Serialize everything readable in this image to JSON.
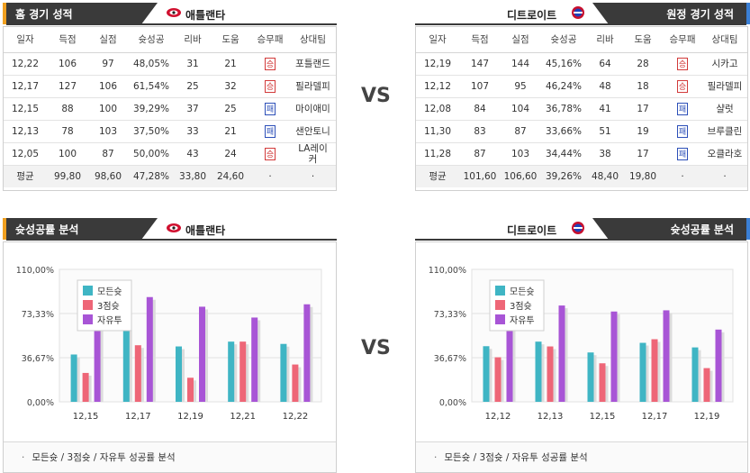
{
  "home_record": {
    "header_title": "홈 경기 성적",
    "team": "애틀랜타",
    "columns": [
      "일자",
      "득점",
      "실점",
      "슛성공",
      "리바",
      "도움",
      "승무패",
      "상대팀"
    ],
    "rows": [
      [
        "12,22",
        "106",
        "97",
        "48,05%",
        "31",
        "21",
        "승",
        "포틀랜드"
      ],
      [
        "12,17",
        "127",
        "106",
        "61,54%",
        "25",
        "32",
        "승",
        "필라델피"
      ],
      [
        "12,15",
        "88",
        "100",
        "39,29%",
        "37",
        "25",
        "패",
        "마이애미"
      ],
      [
        "12,13",
        "78",
        "103",
        "37,50%",
        "33",
        "21",
        "패",
        "샌안토니"
      ],
      [
        "12,05",
        "100",
        "87",
        "50,00%",
        "43",
        "24",
        "승",
        "LA레이커"
      ]
    ],
    "avg": [
      "평균",
      "99,80",
      "98,60",
      "47,28%",
      "33,80",
      "24,60",
      "·",
      "·"
    ]
  },
  "away_record": {
    "header_title": "원정 경기 성적",
    "team": "디트로이트",
    "columns": [
      "일자",
      "득점",
      "실점",
      "슛성공",
      "리바",
      "도움",
      "승무패",
      "상대팀"
    ],
    "rows": [
      [
        "12,19",
        "147",
        "144",
        "45,16%",
        "64",
        "28",
        "승",
        "시카고"
      ],
      [
        "12,12",
        "107",
        "95",
        "46,24%",
        "48",
        "18",
        "승",
        "필라델피"
      ],
      [
        "12,08",
        "84",
        "104",
        "36,78%",
        "41",
        "17",
        "패",
        "샬럿"
      ],
      [
        "11,30",
        "83",
        "87",
        "33,66%",
        "51",
        "19",
        "패",
        "브루클린"
      ],
      [
        "11,28",
        "87",
        "103",
        "34,44%",
        "38",
        "17",
        "패",
        "오클라호"
      ]
    ],
    "avg": [
      "평균",
      "101,60",
      "106,60",
      "39,26%",
      "48,40",
      "19,80",
      "·",
      "·"
    ]
  },
  "vs_label": "VS",
  "home_chart": {
    "header_title": "슛성공률 분석",
    "team": "애틀랜타",
    "footer": "모든슛 / 3점슛 / 자유투 성공률 분석"
  },
  "away_chart": {
    "header_title": "슛성공률 분석",
    "team": "디트로이트",
    "footer": "모든슛 / 3점슛 / 자유투 성공률 분석"
  },
  "colors": {
    "all_shots": "#3fb5c4",
    "three_pt": "#ee6677",
    "free_throw": "#a855d6",
    "home_accent": "#f0a020",
    "away_accent": "#3a7fd5"
  },
  "chart_data": [
    {
      "type": "bar",
      "categories": [
        "12,15",
        "12,17",
        "12,19",
        "12,21",
        "12,22"
      ],
      "series": [
        {
          "name": "모든슛",
          "values": [
            39.3,
            61.5,
            46.0,
            50.0,
            48.1
          ]
        },
        {
          "name": "3점슛",
          "values": [
            24.0,
            47.0,
            20.0,
            50.0,
            31.0
          ]
        },
        {
          "name": "자유투",
          "values": [
            72.0,
            87.0,
            79.0,
            70.0,
            81.0
          ]
        }
      ],
      "yticks": [
        "0,00%",
        "36,67%",
        "73,33%",
        "110,00%"
      ],
      "ylim": [
        0,
        110
      ],
      "legend": "top-left",
      "grid": true
    },
    {
      "type": "bar",
      "categories": [
        "12,12",
        "12,13",
        "12,15",
        "12,17",
        "12,19"
      ],
      "series": [
        {
          "name": "모든슛",
          "values": [
            46.2,
            50.0,
            41.0,
            49.0,
            45.2
          ]
        },
        {
          "name": "3점슛",
          "values": [
            37.0,
            46.0,
            32.0,
            52.0,
            28.0
          ]
        },
        {
          "name": "자유투",
          "values": [
            70.0,
            80.0,
            75.0,
            76.0,
            60.0
          ]
        }
      ],
      "yticks": [
        "0,00%",
        "36,67%",
        "73,33%",
        "110,00%"
      ],
      "ylim": [
        0,
        110
      ],
      "legend": "top-left",
      "grid": true
    }
  ]
}
